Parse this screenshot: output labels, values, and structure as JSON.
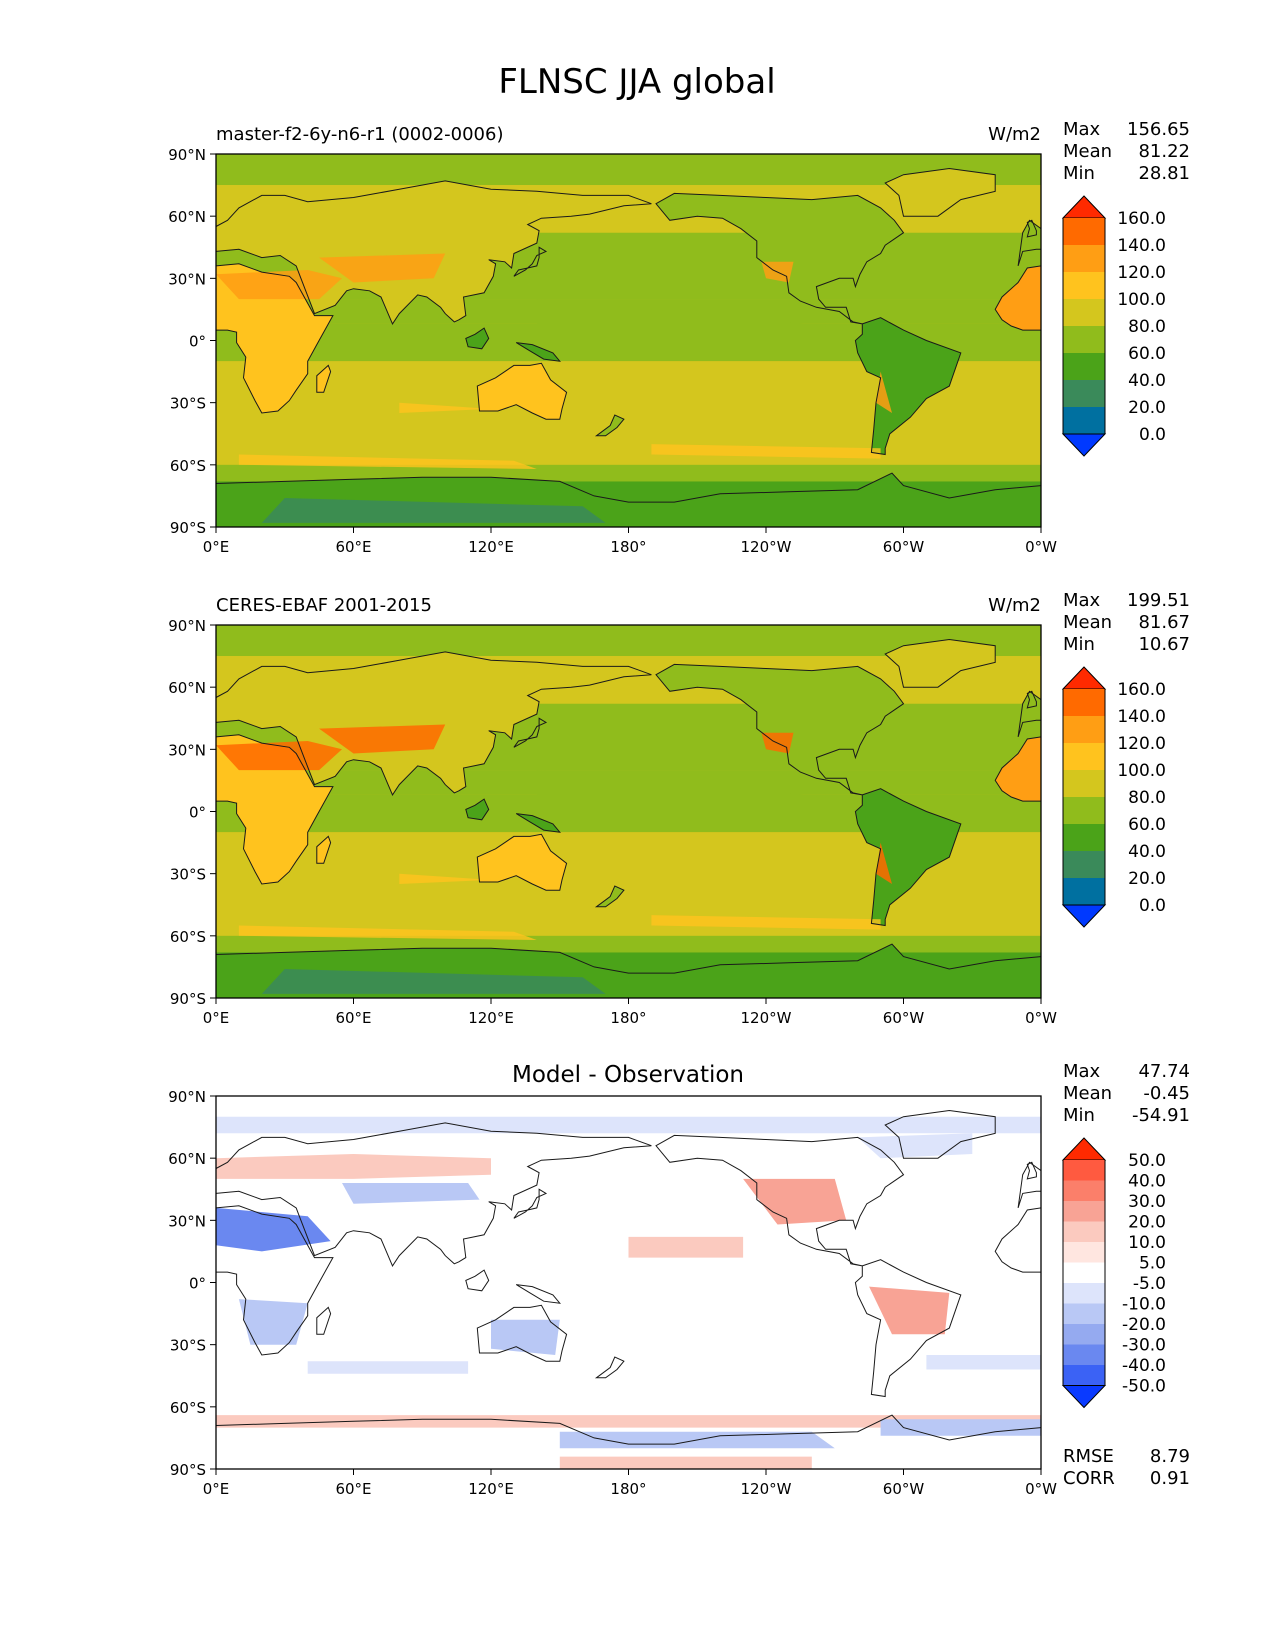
{
  "title": "FLNSC JJA global",
  "panels": [
    {
      "left_title": "master-f2-6y-n6-r1 (0002-0006)",
      "center_title": "",
      "units": "W/m2",
      "stats": [
        {
          "label": "Max",
          "value": "156.65"
        },
        {
          "label": "Mean",
          "value": "81.22"
        },
        {
          "label": "Min",
          "value": "28.81"
        }
      ],
      "colorbar_labels": [
        "160.0",
        "140.0",
        "120.0",
        "100.0",
        "80.0",
        "60.0",
        "40.0",
        "20.0",
        "0.0"
      ],
      "colorbar_colors": [
        "#ff2a00",
        "#ff6a00",
        "#ff9e14",
        "#ffc31e",
        "#d4c61e",
        "#90bc1c",
        "#4ba319",
        "#3a8a5a",
        "#0070a0",
        "#0039ff"
      ],
      "map_style": "abs",
      "extra": []
    },
    {
      "left_title": "CERES-EBAF 2001-2015",
      "center_title": "",
      "units": "W/m2",
      "stats": [
        {
          "label": "Max",
          "value": "199.51"
        },
        {
          "label": "Mean",
          "value": "81.67"
        },
        {
          "label": "Min",
          "value": "10.67"
        }
      ],
      "colorbar_labels": [
        "160.0",
        "140.0",
        "120.0",
        "100.0",
        "80.0",
        "60.0",
        "40.0",
        "20.0",
        "0.0"
      ],
      "colorbar_colors": [
        "#ff2a00",
        "#ff6a00",
        "#ff9e14",
        "#ffc31e",
        "#d4c61e",
        "#90bc1c",
        "#4ba319",
        "#3a8a5a",
        "#0070a0",
        "#0039ff"
      ],
      "map_style": "abs",
      "extra": []
    },
    {
      "left_title": "",
      "center_title": "Model - Observation",
      "units": "",
      "stats": [
        {
          "label": "Max",
          "value": "47.74"
        },
        {
          "label": "Mean",
          "value": "-0.45"
        },
        {
          "label": "Min",
          "value": "-54.91"
        }
      ],
      "colorbar_labels": [
        "50.0",
        "40.0",
        "30.0",
        "20.0",
        "10.0",
        "5.0",
        "-5.0",
        "-10.0",
        "-20.0",
        "-30.0",
        "-40.0",
        "-50.0"
      ],
      "colorbar_colors": [
        "#ff2a00",
        "#ff5a40",
        "#fb7f6a",
        "#f8a395",
        "#fbcabf",
        "#ffe6e0",
        "#ffffff",
        "#dde4fb",
        "#b9c8f5",
        "#95aaf0",
        "#6a88f0",
        "#3b62f5",
        "#0a3aff"
      ],
      "map_style": "diff",
      "extra": [
        {
          "label": "RMSE",
          "value": "8.79"
        },
        {
          "label": "CORR",
          "value": "0.91"
        }
      ]
    }
  ],
  "axes": {
    "lat_ticks": [
      "90°N",
      "60°N",
      "30°N",
      "0°",
      "30°S",
      "60°S",
      "90°S"
    ],
    "lon_ticks": [
      "0°E",
      "60°E",
      "120°E",
      "180°",
      "120°W",
      "60°W",
      "0°W"
    ]
  }
}
